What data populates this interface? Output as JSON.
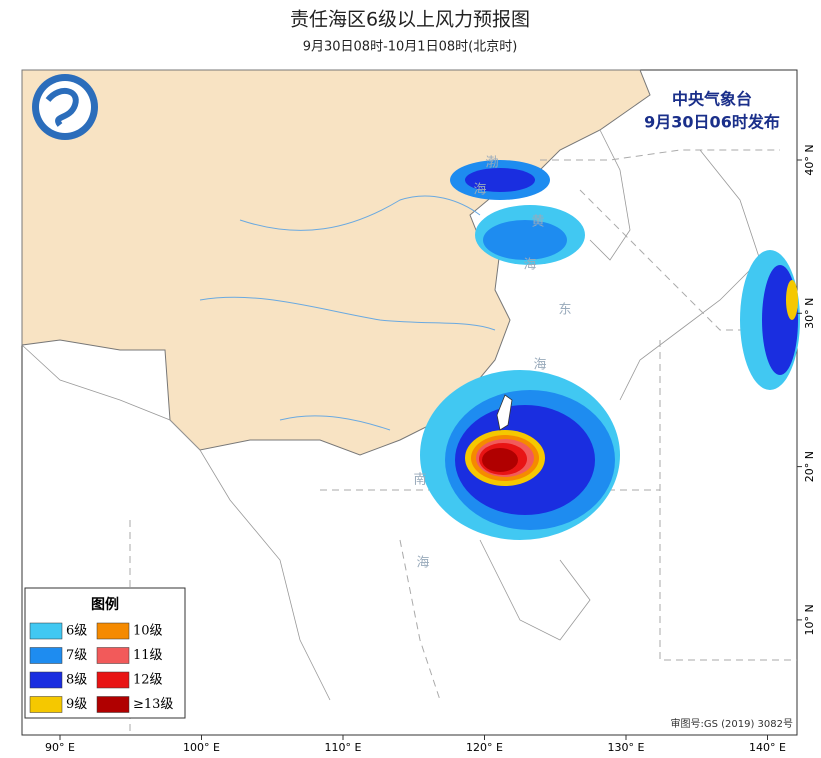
{
  "header": {
    "title": "责任海区6级以上风力预报图",
    "subtitle": "9月30日08时-10月1日08时(北京时)"
  },
  "agency": "中央气象台",
  "issued": "9月30日06时发布",
  "legend": {
    "title": "图例",
    "items": [
      {
        "label": "6级",
        "color": "#41c8f2"
      },
      {
        "label": "7级",
        "color": "#1e8cf0"
      },
      {
        "label": "8级",
        "color": "#1a2ee0"
      },
      {
        "label": "9级",
        "color": "#f5c800"
      },
      {
        "label": "10级",
        "color": "#f58a00"
      },
      {
        "label": "11级",
        "color": "#f25a5a"
      },
      {
        "label": "12级",
        "color": "#e81414"
      },
      {
        "label": "≥13级",
        "color": "#b00000"
      }
    ]
  },
  "sea_labels": [
    "渤",
    "海",
    "黄",
    "海",
    "东",
    "海",
    "南",
    "海"
  ],
  "lon_ticks": [
    {
      "value": 90,
      "label": "90° E"
    },
    {
      "value": 100,
      "label": "100° E"
    },
    {
      "value": 110,
      "label": "110° E"
    },
    {
      "value": 120,
      "label": "120° E"
    },
    {
      "value": 130,
      "label": "130° E"
    },
    {
      "value": 140,
      "label": "140° E"
    }
  ],
  "lat_ticks": [
    {
      "value": 10,
      "label": "10° N"
    },
    {
      "value": 20,
      "label": "20° N"
    },
    {
      "value": 30,
      "label": "30° N"
    },
    {
      "value": 40,
      "label": "40° N"
    }
  ],
  "approval": "审图号:GS (2019) 3082号"
}
